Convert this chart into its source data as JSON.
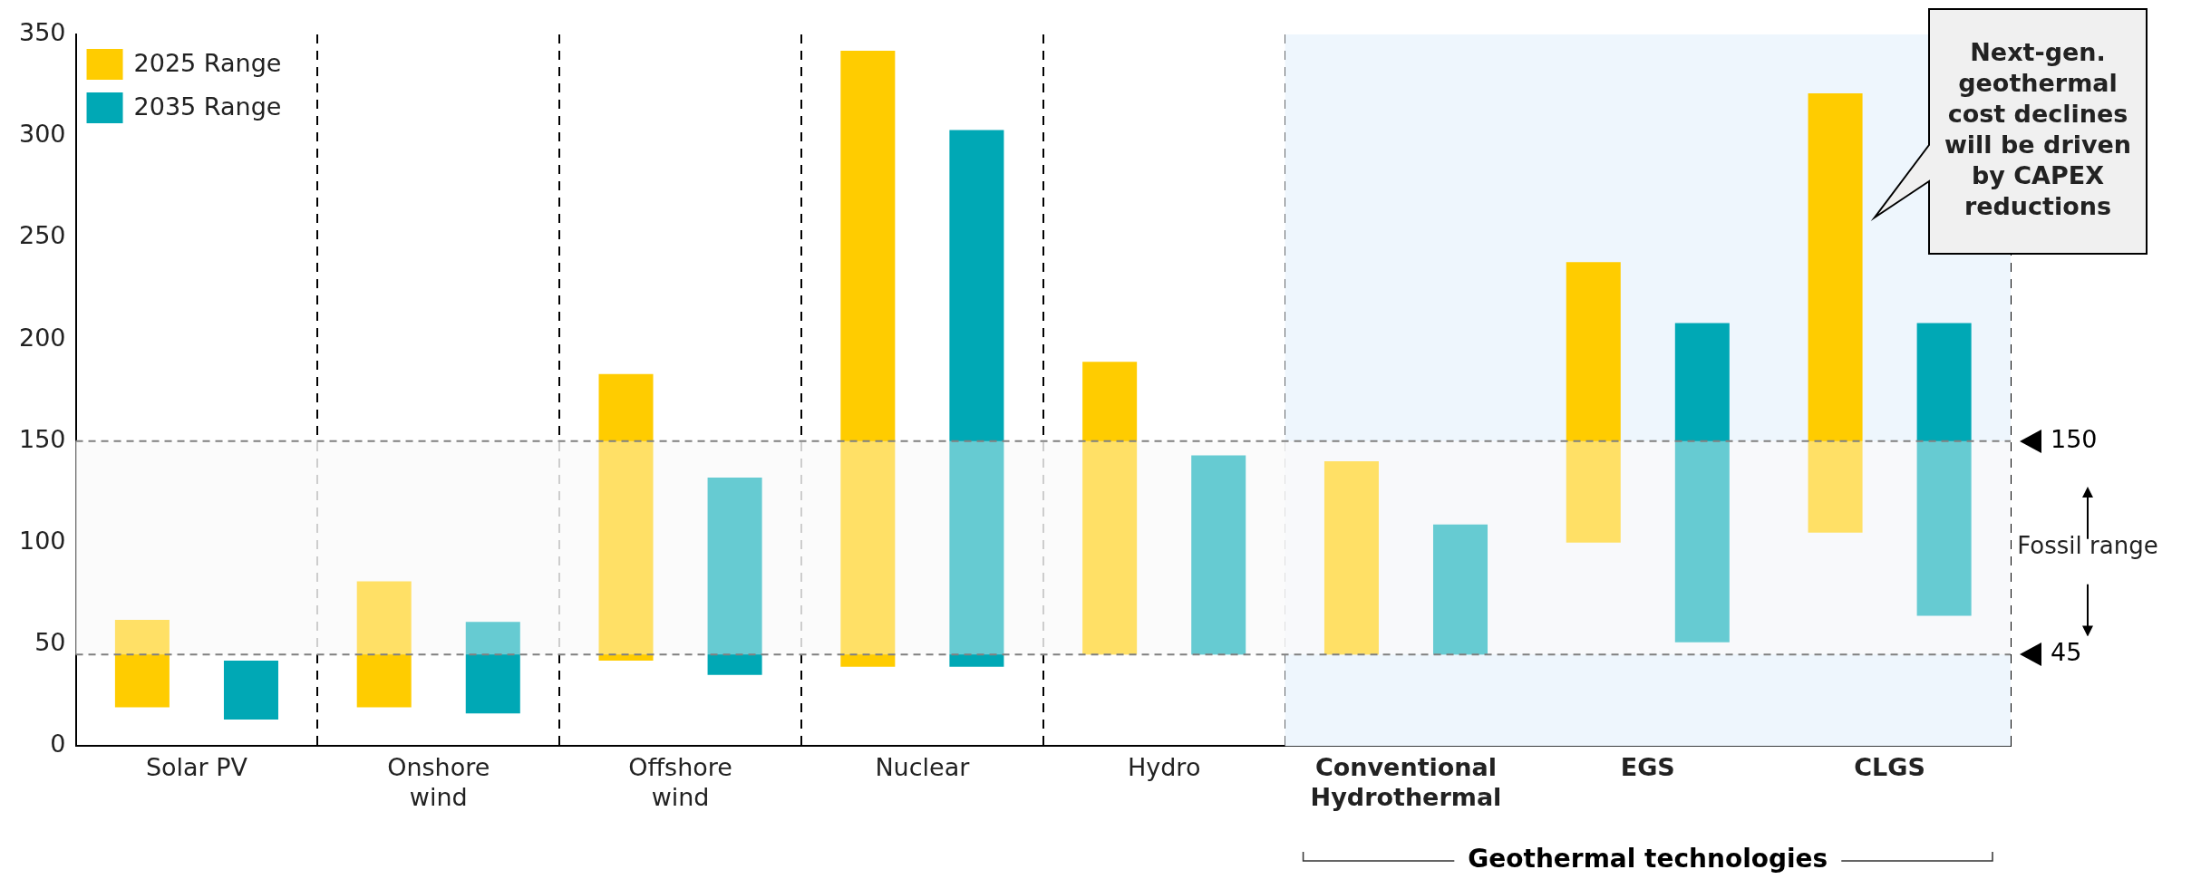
{
  "chart_data": {
    "type": "bar",
    "categories": [
      "Solar PV",
      "Onshore wind",
      "Offshore wind",
      "Nuclear",
      "Hydro",
      "Conventional Hydrothermal",
      "EGS",
      "CLGS"
    ],
    "series": [
      {
        "name": "2025 Range",
        "color": "#ffcc00",
        "base": [
          19,
          19,
          42,
          39,
          45,
          45,
          100,
          105
        ],
        "values": [
          43,
          62,
          141,
          303,
          144,
          95,
          138,
          216
        ]
      },
      {
        "name": "2035 Range",
        "color": "#00a8b5",
        "base": [
          13,
          16,
          35,
          39,
          45,
          45,
          51,
          64
        ],
        "values": [
          29,
          45,
          97,
          264,
          98,
          64,
          157,
          144
        ]
      }
    ],
    "ylim": [
      0,
      350
    ],
    "yticks": [
      0,
      50,
      100,
      150,
      200,
      250,
      300,
      350
    ],
    "grid": "x",
    "legend": "top left",
    "ref_lines": [
      {
        "axis": "y",
        "value": 150,
        "label": "150",
        "color": "#808080",
        "line_style": "dashed"
      },
      {
        "axis": "y",
        "value": 45,
        "label": "45",
        "color": "#808080",
        "line_style": "dashed"
      }
    ],
    "bands": [
      {
        "axis": "y",
        "from": 45,
        "to": 150,
        "label": "Fossil range",
        "color": "#f5f5f5"
      },
      {
        "axis": "x",
        "from": "Conventional Hydrothermal",
        "to": "CLGS",
        "color": "#eef6fd"
      }
    ],
    "annotations": [
      "Next-gen. geothermal cost declines will be driven by CAPEX reductions",
      "Geothermal technologies"
    ]
  }
}
